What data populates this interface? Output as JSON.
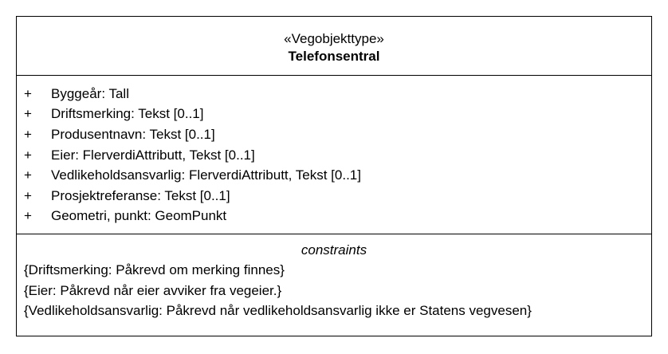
{
  "class": {
    "stereotype": "«Vegobjekttype»",
    "name": "Telefonsentral"
  },
  "attributes": [
    {
      "visibility": "+",
      "text": "Byggeår: Tall"
    },
    {
      "visibility": "+",
      "text": "Driftsmerking: Tekst [0..1]"
    },
    {
      "visibility": "+",
      "text": "Produsentnavn: Tekst [0..1]"
    },
    {
      "visibility": "+",
      "text": "Eier: FlerverdiAttributt, Tekst [0..1]"
    },
    {
      "visibility": "+",
      "text": "Vedlikeholdsansvarlig: FlerverdiAttributt, Tekst [0..1]"
    },
    {
      "visibility": "+",
      "text": "Prosjektreferanse: Tekst [0..1]"
    },
    {
      "visibility": "+",
      "text": "Geometri, punkt: GeomPunkt"
    }
  ],
  "constraints": {
    "title": "constraints",
    "items": [
      "{Driftsmerking: Påkrevd om merking finnes}",
      "{Eier: Påkrevd når eier avviker fra vegeier.}",
      "{Vedlikeholdsansvarlig: Påkrevd når vedlikeholdsansvarlig ikke er Statens vegvesen}"
    ]
  }
}
